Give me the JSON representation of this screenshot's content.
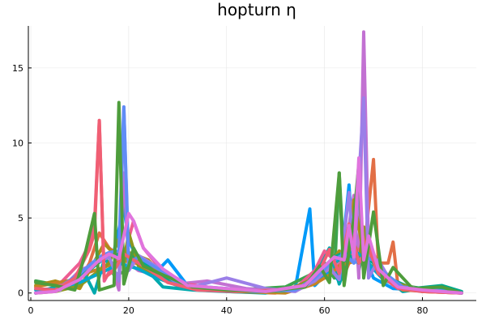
{
  "chart_data": {
    "type": "line",
    "title": "hopturn η",
    "xlabel": "",
    "ylabel": "",
    "xlim": [
      -0.5,
      91
    ],
    "ylim": [
      -0.5,
      17.8
    ],
    "x_ticks": [
      0,
      20,
      40,
      60,
      80
    ],
    "y_ticks": [
      0,
      5,
      10,
      15
    ],
    "grid": true,
    "legend": "none",
    "series": [
      {
        "color": "#009af9",
        "x": [
          1,
          4,
          8,
          12,
          15,
          17,
          19,
          20,
          22,
          25,
          28,
          32,
          40,
          48,
          54,
          57,
          58,
          61,
          63,
          65,
          66,
          68,
          70,
          74,
          80,
          84,
          88
        ],
        "y": [
          0,
          0.2,
          0.5,
          1.5,
          2.5,
          2.8,
          5.7,
          3.5,
          2.2,
          1.2,
          2.2,
          0.5,
          0.3,
          0.1,
          0.3,
          5.6,
          0.5,
          1.5,
          0.8,
          7.2,
          2,
          2.5,
          1,
          0.3,
          0.2,
          0.1,
          0
        ]
      },
      {
        "color": "#e26f46",
        "x": [
          1,
          5,
          9,
          12,
          14,
          16,
          18,
          20,
          22,
          26,
          30,
          40,
          50,
          56,
          60,
          62,
          64,
          66,
          68,
          70,
          71,
          73,
          74,
          75,
          80,
          88
        ],
        "y": [
          0.8,
          0.5,
          0.3,
          2,
          4,
          3,
          2.5,
          2.2,
          1.9,
          1.6,
          0.7,
          0.1,
          0,
          0.5,
          1.5,
          2.5,
          1.2,
          2.8,
          2.5,
          8.9,
          2,
          2,
          3.4,
          0.5,
          0.1,
          0
        ]
      },
      {
        "color": "#3da44d",
        "x": [
          1,
          6,
          10,
          13,
          15,
          17,
          19,
          21,
          24,
          28,
          34,
          42,
          52,
          57,
          60,
          62,
          63,
          64,
          66,
          67,
          68,
          70,
          72,
          76,
          80,
          86,
          88
        ],
        "y": [
          0.8,
          0.5,
          1,
          2,
          2.5,
          1.2,
          1.4,
          2.5,
          1.8,
          0.9,
          0.4,
          0.2,
          0.4,
          1.2,
          2,
          1,
          8,
          2,
          6,
          1.5,
          3,
          2,
          1.2,
          0.5,
          0.3,
          0.1,
          0
        ]
      },
      {
        "color": "#c271d2",
        "x": [
          1,
          6,
          10,
          14,
          16,
          18,
          19,
          20,
          22,
          26,
          30,
          36,
          44,
          52,
          58,
          62,
          64,
          66,
          67,
          68,
          69,
          71,
          74,
          80,
          88
        ],
        "y": [
          0,
          0.2,
          1.5,
          2.1,
          2.5,
          0.2,
          8,
          2,
          1.5,
          1.2,
          0.6,
          0.8,
          0.3,
          0.1,
          1,
          1.8,
          2.5,
          6.5,
          1,
          17.4,
          3,
          1.5,
          0.5,
          0.2,
          0
        ]
      },
      {
        "color": "#ac8d18",
        "x": [
          1,
          5,
          10,
          13,
          15,
          17,
          19,
          21,
          24,
          28,
          34,
          42,
          52,
          58,
          61,
          63,
          65,
          66,
          68,
          70,
          72,
          75,
          80,
          88
        ],
        "y": [
          0.5,
          0.8,
          0.3,
          2.1,
          3.3,
          2.6,
          2.8,
          2.6,
          2.2,
          0.8,
          0.3,
          0.1,
          0.2,
          0.9,
          1.8,
          2.8,
          2.2,
          6.2,
          2.6,
          2.2,
          1.2,
          0.4,
          0.1,
          0
        ]
      },
      {
        "color": "#00a9ad",
        "x": [
          1,
          5,
          9,
          11,
          13,
          15,
          17,
          19,
          21,
          23,
          27,
          33,
          40,
          48,
          56,
          59,
          61,
          63,
          65,
          67,
          69,
          72,
          76,
          82,
          88
        ],
        "y": [
          0,
          0.4,
          0.8,
          1.3,
          0,
          2.2,
          1.8,
          2.4,
          2.2,
          1.8,
          0.4,
          0.2,
          0.1,
          0,
          0.5,
          1.8,
          3,
          0.6,
          2.4,
          2,
          3,
          1.1,
          0.1,
          0.4,
          0
        ]
      },
      {
        "color": "#ed5d92",
        "x": [
          1,
          5,
          10,
          12,
          13,
          14,
          15,
          17,
          19,
          21,
          23,
          26,
          30,
          38,
          46,
          54,
          58,
          60,
          62,
          64,
          66,
          68,
          70,
          72,
          76,
          82,
          88
        ],
        "y": [
          0,
          0.3,
          2,
          3.3,
          4.5,
          11.5,
          0.8,
          2,
          2.5,
          4.8,
          3,
          1.8,
          0.7,
          0.3,
          0.1,
          0.3,
          1.5,
          2.8,
          2.2,
          2.5,
          3,
          2.8,
          2.4,
          1.1,
          0.3,
          0.1,
          0
        ]
      },
      {
        "color": "#c68225",
        "x": [
          1,
          4,
          9,
          12,
          15,
          17,
          19,
          21,
          24,
          28,
          34,
          42,
          52,
          58,
          61,
          63,
          65,
          67,
          69,
          71,
          73,
          76,
          82,
          88
        ],
        "y": [
          0.4,
          0.6,
          0.9,
          1.4,
          1.7,
          2,
          2.1,
          2.1,
          1.8,
          0.8,
          0.3,
          0.1,
          0,
          0.6,
          1.2,
          1.8,
          2,
          2.2,
          1.9,
          1.6,
          0.9,
          0.2,
          0.1,
          0
        ]
      },
      {
        "color": "#00a98d",
        "x": [
          1,
          5,
          10,
          13,
          15,
          17,
          19,
          21,
          23,
          27,
          32,
          40,
          48,
          56,
          59,
          62,
          64,
          66,
          68,
          70,
          73,
          78,
          84,
          88
        ],
        "y": [
          0,
          0.2,
          1,
          1.8,
          2.3,
          2.5,
          2.6,
          2.4,
          2,
          1,
          0.4,
          0.2,
          0.1,
          0.4,
          1.5,
          2.4,
          2.7,
          2.3,
          2.5,
          2,
          1,
          0.3,
          0.5,
          0.1
        ]
      },
      {
        "color": "#8e971e",
        "x": [
          1,
          5,
          10,
          14,
          16,
          18,
          19,
          20,
          22,
          26,
          30,
          36,
          44,
          52,
          58,
          62,
          64,
          66,
          67,
          68,
          69,
          71,
          74,
          80,
          88
        ],
        "y": [
          0,
          0.1,
          0.5,
          1.5,
          2,
          3.6,
          2,
          4,
          1.8,
          1,
          0.5,
          0.3,
          0.1,
          0.1,
          1,
          2,
          2.4,
          3.5,
          2,
          4.4,
          3.2,
          2,
          0.7,
          0.2,
          0
        ]
      },
      {
        "color": "#00a8cb",
        "x": [
          1,
          5,
          10,
          14,
          16,
          18,
          20,
          22,
          25,
          30,
          38,
          46,
          54,
          58,
          62,
          64,
          66,
          68,
          70,
          72,
          76,
          82,
          88
        ],
        "y": [
          0.2,
          0.3,
          0.7,
          1.3,
          1.6,
          2,
          1.8,
          1.6,
          1.1,
          0.5,
          0.2,
          0.1,
          0.2,
          0.9,
          2,
          2.5,
          2.8,
          2.4,
          1.6,
          0.9,
          0.3,
          0.2,
          0
        ]
      },
      {
        "color": "#9b7fe8",
        "x": [
          1,
          6,
          10,
          14,
          16,
          18,
          19,
          20,
          22,
          27,
          33,
          40,
          48,
          54,
          58,
          61,
          63,
          65,
          66,
          68,
          69,
          71,
          74,
          80,
          88
        ],
        "y": [
          0,
          0.2,
          1.4,
          2.1,
          2.4,
          0.8,
          12.4,
          1.5,
          2.5,
          1.5,
          0.4,
          1,
          0.3,
          0.1,
          0.8,
          1.7,
          0.9,
          6.7,
          2,
          13,
          1,
          2.2,
          0.5,
          0.2,
          0
        ]
      },
      {
        "color": "#608cf6",
        "x": [
          1,
          5,
          10,
          14,
          16,
          18,
          19,
          20,
          22,
          26,
          30,
          38,
          46,
          54,
          58,
          62,
          64,
          66,
          68,
          70,
          72,
          76,
          82,
          88
        ],
        "y": [
          0,
          0.2,
          1.3,
          2.4,
          2.7,
          2.8,
          12.4,
          2,
          2.4,
          1.6,
          0.6,
          0.2,
          0.1,
          0.2,
          1,
          2.2,
          2.6,
          2,
          2.4,
          2.2,
          1.4,
          0.4,
          0.2,
          0
        ]
      },
      {
        "color": "#f05f73",
        "x": [
          1,
          5,
          9,
          12,
          13,
          14,
          15,
          17,
          19,
          21,
          24,
          28,
          34,
          42,
          50,
          56,
          59,
          61,
          63,
          65,
          67,
          69,
          71,
          75,
          80,
          88
        ],
        "y": [
          0.3,
          0.2,
          1,
          2.9,
          4,
          11.5,
          1,
          1.5,
          2.6,
          2.2,
          1.6,
          0.7,
          0.2,
          0.1,
          0.2,
          0.5,
          1.5,
          2.9,
          1.3,
          4.6,
          2,
          3,
          1.3,
          0.3,
          0.1,
          0
        ]
      },
      {
        "color": "#4e9d3c",
        "x": [
          1,
          5,
          9,
          11,
          13,
          14,
          15,
          17,
          18,
          19,
          21,
          23,
          27,
          33,
          40,
          48,
          56,
          59,
          61,
          63,
          64,
          66,
          67,
          68,
          70,
          72,
          74,
          78,
          84,
          88
        ],
        "y": [
          0.7,
          0.5,
          0.2,
          2.5,
          5.3,
          0.2,
          0.3,
          0.5,
          12.7,
          0.6,
          3,
          1.8,
          1.2,
          0.4,
          0.2,
          0.1,
          0.4,
          1.8,
          0.7,
          8,
          0.5,
          5,
          8.6,
          1,
          5.4,
          0.5,
          1.7,
          0.3,
          0.4,
          0
        ]
      },
      {
        "color": "#e074de",
        "x": [
          1,
          5,
          10,
          14,
          16,
          18,
          20,
          21,
          23,
          27,
          32,
          40,
          48,
          56,
          59,
          62,
          64,
          65,
          66,
          67,
          68,
          69,
          71,
          75,
          80,
          88
        ],
        "y": [
          0,
          0.1,
          0.9,
          2.2,
          2.6,
          2.3,
          5.3,
          4.8,
          3,
          1.6,
          0.5,
          0.3,
          0.1,
          0.5,
          1.5,
          2.4,
          2.2,
          4.5,
          2.4,
          9,
          2.2,
          3.8,
          1.6,
          0.4,
          0.2,
          0
        ]
      }
    ]
  }
}
